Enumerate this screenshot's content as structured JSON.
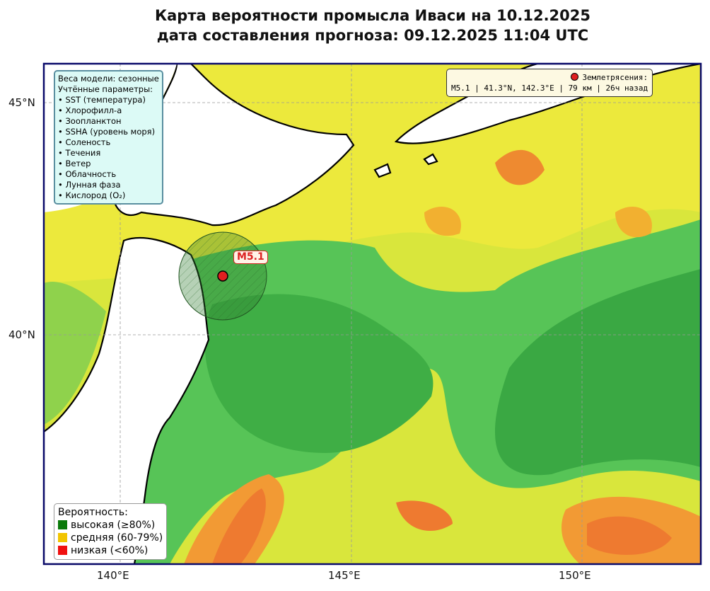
{
  "header": {
    "title": "Карта вероятности промысла Иваси на 10.12.2025",
    "subtitle": "дата составления прогноза: 09.12.2025 11:04 UTC"
  },
  "axes": {
    "x_ticks": [
      "140°E",
      "145°E",
      "150°E"
    ],
    "y_ticks": [
      "45°N",
      "40°N"
    ]
  },
  "model_box": {
    "weights": "Веса модели: сезонные",
    "params_title": "Учтённые параметры:",
    "params": [
      "• SST (температура)",
      "• Хлорофилл-а",
      "• Зоопланктон",
      "• SSHA (уровень моря)",
      "• Соленость",
      "• Течения",
      "• Ветер",
      "• Облачность",
      "• Лунная фаза",
      "• Кислород (O₂)"
    ]
  },
  "earthquake_box": {
    "title": "Землетрясения:",
    "entry": "M5.1 | 41.3°N, 142.3°E | 79 км | 26ч назад"
  },
  "marker": {
    "label": "M5.1"
  },
  "legend": {
    "title": "Вероятность:",
    "items": [
      "высокая (≥80%)",
      "средняя (60-79%)",
      "низкая (<60%)"
    ]
  }
}
